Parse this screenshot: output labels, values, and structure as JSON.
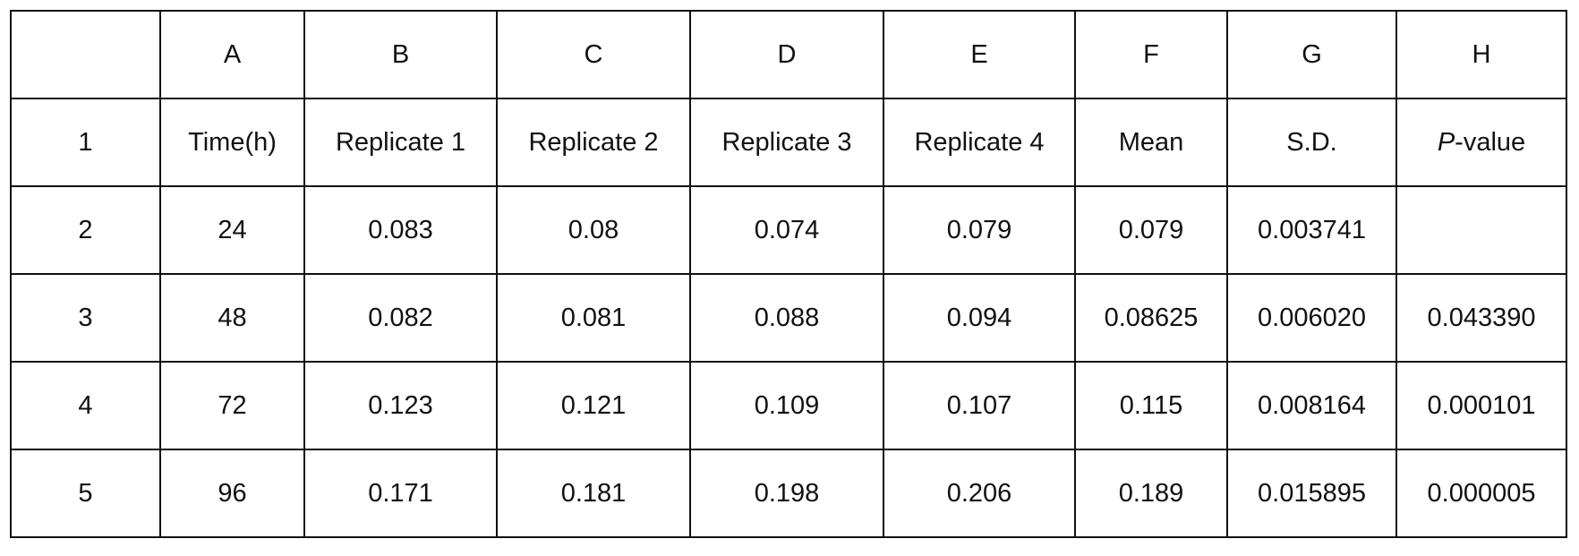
{
  "table": {
    "header": [
      null,
      "A",
      "B",
      "C",
      "D",
      "E",
      "F",
      "G",
      "H"
    ],
    "rows": [
      [
        "1",
        "Time(h)",
        "Replicate 1",
        "Replicate 2",
        "Replicate 3",
        "Replicate 4",
        "Mean",
        "S.D.",
        "P-value"
      ],
      [
        "2",
        "24",
        "0.083",
        "0.08",
        "0.074",
        "0.079",
        "0.079",
        "0.003741",
        null
      ],
      [
        "3",
        "48",
        "0.082",
        "0.081",
        "0.088",
        "0.094",
        "0.08625",
        "0.006020",
        "0.043390"
      ],
      [
        "4",
        "72",
        "0.123",
        "0.121",
        "0.109",
        "0.107",
        "0.115",
        "0.008164",
        "0.000101"
      ],
      [
        "5",
        "96",
        "0.171",
        "0.181",
        "0.198",
        "0.206",
        "0.189",
        "0.015895",
        "0.000005"
      ]
    ]
  }
}
